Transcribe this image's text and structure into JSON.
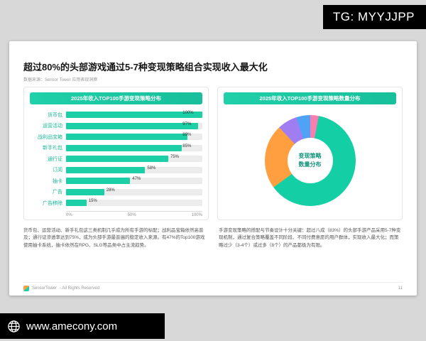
{
  "watermarks": {
    "tg": "TG: MYYJJPP",
    "site": "www.amecony.com"
  },
  "slide": {
    "title": "超过80%的头部游戏通过5-7种变现策略组合实现收入最大化",
    "source": "数据来源：Sensor Tower 应用表现洞察"
  },
  "colors": {
    "accent_teal": "#1ccfa6",
    "header_teal": "#1fd0a8",
    "bar_track": "#ececec"
  },
  "chart_data": [
    {
      "type": "bar",
      "orientation": "horizontal",
      "title": "2025年收入TOP100手游变现策略分布",
      "categories": [
        "货币包",
        "运营活动",
        "战利品宝箱",
        "新手礼包",
        "通行证",
        "订阅",
        "抽卡",
        "广告",
        "广告移除"
      ],
      "values": [
        100,
        97,
        89,
        85,
        75,
        58,
        47,
        28,
        15
      ],
      "value_suffix": "%",
      "xlim": [
        0,
        100
      ],
      "x_ticks": [
        "0%",
        "50%",
        "100%"
      ],
      "bar_color": "#1ccfa6"
    },
    {
      "type": "pie",
      "title": "2025年收入TOP100手游变现策略数量分布",
      "center_label": "变现策略\n数量分布",
      "segments": [
        {
          "label": "",
          "value": 3,
          "color": "#f77fb0"
        },
        {
          "label": "",
          "value": 62,
          "color": "#14cfa6"
        },
        {
          "label": "",
          "value": 23,
          "color": "#ff9f40"
        },
        {
          "label": "",
          "value": 7,
          "color": "#a07df0"
        },
        {
          "label": "",
          "value": 5,
          "color": "#4fa3f7"
        }
      ]
    }
  ],
  "notes": {
    "left": "货币包、运营活动、新手礼包这三类机制几乎成为所有手游的标配；战利品宝箱依然高普及；通行证渗透率达到75%，成为头部手游最普遍的稳定收入来源。有47%的Top100游戏使用抽卡系统，抽卡依然在RPG、SLG等品类中占主流趋势。",
    "right": "手游变现策略的搭配与节奏设计十分关键：超过八成（83%）的头部手游产品采用5-7种变现机制，通过复合策略覆盖不同阶段、不同付费意愿的用户群体，实现收入最大化；而策略过少（3-4个）或过多（8个）的产品都极为有限。"
  },
  "footer": {
    "logo_text": "SensorTower",
    "rights": "- All Rights Reserved",
    "page": "11"
  }
}
